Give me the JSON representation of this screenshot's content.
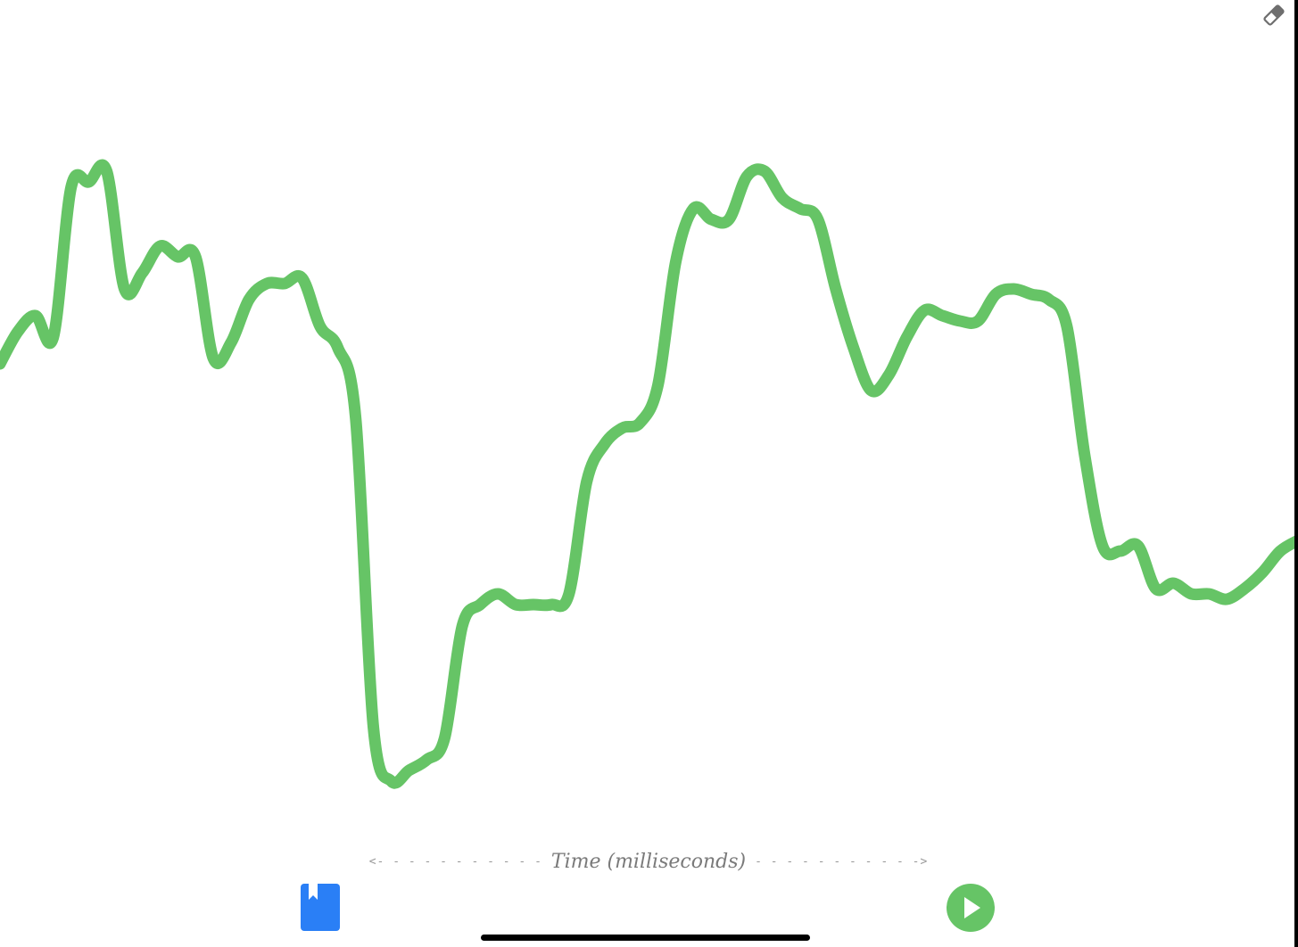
{
  "app": {
    "accent_color": "#66c466",
    "bookmark_color": "#2a7ff6"
  },
  "toolbar": {
    "eraser_icon": "eraser-icon"
  },
  "axis": {
    "left_arrow": "<- - - - - - - - - - -",
    "label": "Time (milliseconds)",
    "right_arrow": "- - - - - - - - - - ->"
  },
  "controls": {
    "bookmark_icon": "bookmark-icon",
    "play_icon": "play-icon"
  },
  "chart_data": {
    "type": "line",
    "xlabel": "Time (milliseconds)",
    "ylabel": "",
    "grid": false,
    "series": [
      {
        "color": "#66c466",
        "y": [
          0.37,
          0.43,
          0.46,
          0.42,
          0.7,
          0.71,
          0.73,
          0.51,
          0.54,
          0.59,
          0.57,
          0.57,
          0.38,
          0.41,
          0.49,
          0.52,
          0.52,
          0.53,
          0.44,
          0.4,
          0.27,
          -0.31,
          -0.41,
          -0.39,
          -0.37,
          -0.33,
          -0.12,
          -0.08,
          -0.06,
          -0.08,
          -0.08,
          -0.08,
          -0.06,
          0.15,
          0.22,
          0.25,
          0.26,
          0.33,
          0.56,
          0.66,
          0.64,
          0.64,
          0.72,
          0.73,
          0.68,
          0.66,
          0.64,
          0.51,
          0.4,
          0.32,
          0.35,
          0.42,
          0.47,
          0.46,
          0.45,
          0.45,
          0.5,
          0.51,
          0.5,
          0.49,
          0.44,
          0.2,
          0.03,
          0.02,
          0.03,
          -0.05,
          -0.04,
          -0.06,
          -0.06,
          -0.07,
          -0.05,
          -0.02,
          0.02,
          0.04
        ]
      }
    ]
  }
}
